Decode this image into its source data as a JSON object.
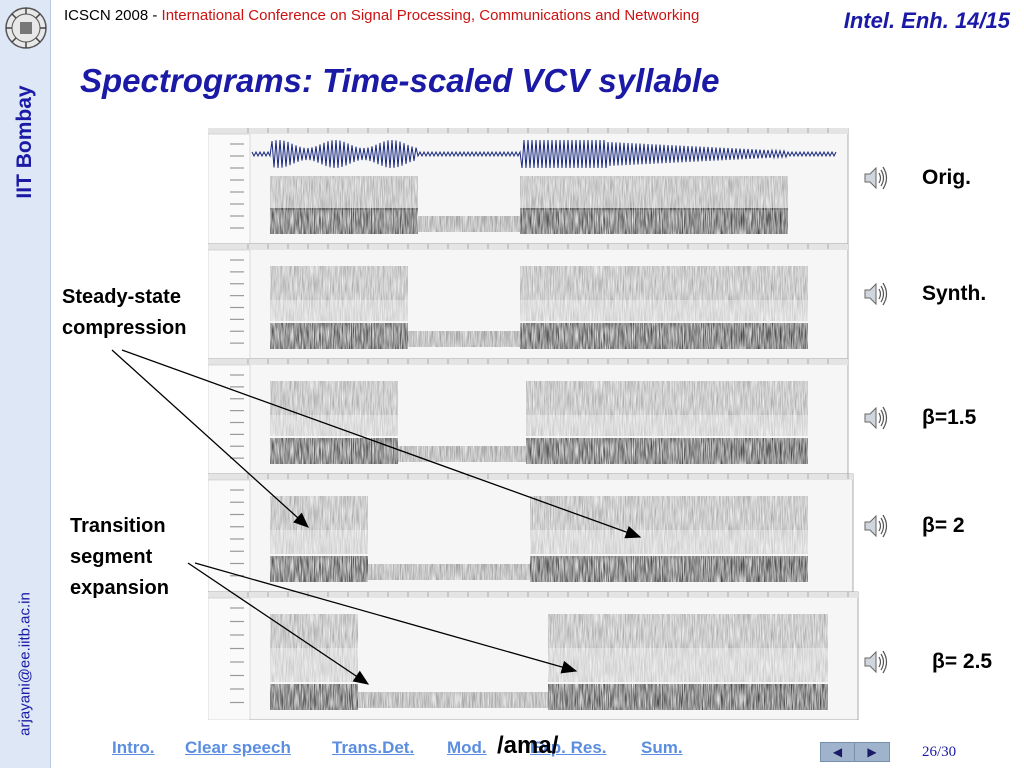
{
  "sidebar": {
    "institute": "IIT Bombay",
    "email": "arjayani@ee.iitb.ac.in"
  },
  "header": {
    "conf_prefix": "ICSCN 2008 - ",
    "conf_name": "International Conference on Signal Processing, Communications and Networking",
    "slide_id": "Intel. Enh. 14/15"
  },
  "slide": {
    "title": "Spectrograms: Time-scaled VCV syllable",
    "annotations": {
      "steady_state": [
        "Steady-state",
        "compression"
      ],
      "transition": [
        "Transition",
        "segment",
        "expansion"
      ]
    },
    "rows": [
      {
        "label": "Orig.",
        "icon": "speaker-icon"
      },
      {
        "label": "Synth.",
        "icon": "speaker-icon"
      },
      {
        "label": "β=1.5",
        "icon": "speaker-icon"
      },
      {
        "label": "β= 2",
        "icon": "speaker-icon"
      },
      {
        "label": "β= 2.5",
        "icon": "speaker-icon"
      }
    ],
    "syllable": "/ama/"
  },
  "footer": {
    "nav": [
      "Intro.",
      "Clear speech",
      "Trans.Det.",
      "Mod.",
      "Exp. Res.",
      "Sum."
    ],
    "prev_icon": "◀",
    "next_icon": "▶",
    "page": "26/30"
  },
  "colors": {
    "title_blue": "#1a1aa6",
    "conf_red": "#cc1111",
    "nav_link": "#5b8de0",
    "sidebar_bg": "#dde7f5"
  }
}
